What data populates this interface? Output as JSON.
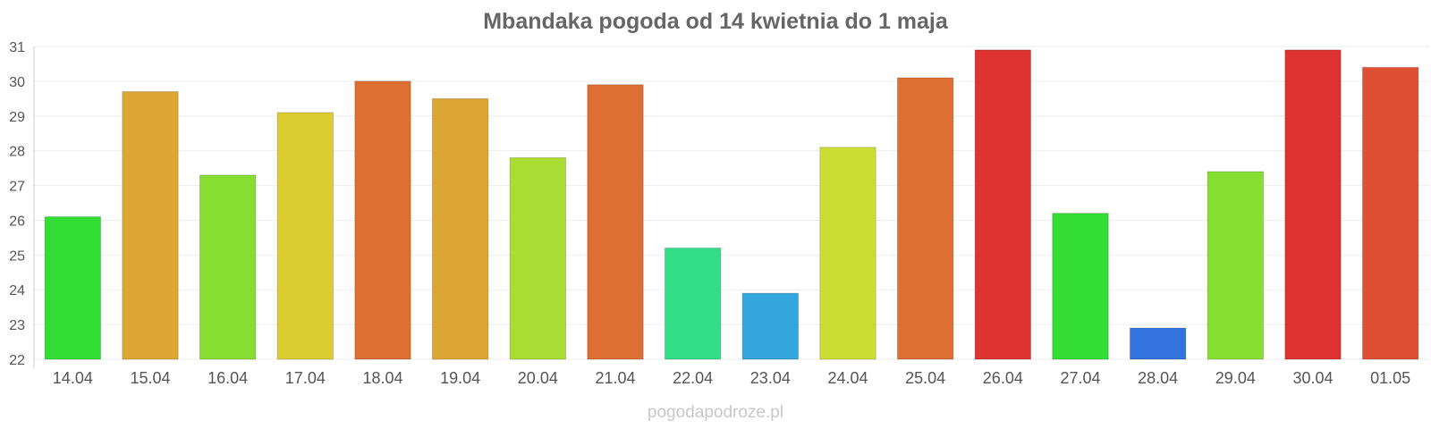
{
  "chart_data": {
    "type": "bar",
    "title": "Mbandaka pogoda od 14 kwietnia do 1 maja",
    "xlabel": "",
    "ylabel": "",
    "ylim": [
      22,
      31
    ],
    "yticks": [
      22,
      23,
      24,
      25,
      26,
      27,
      28,
      29,
      30,
      31
    ],
    "grid": true,
    "legend": "none",
    "categories": [
      "14.04",
      "15.04",
      "16.04",
      "17.04",
      "18.04",
      "19.04",
      "20.04",
      "21.04",
      "22.04",
      "23.04",
      "24.04",
      "25.04",
      "26.04",
      "27.04",
      "28.04",
      "29.04",
      "30.04",
      "01.05"
    ],
    "values": [
      26.1,
      29.7,
      27.3,
      29.1,
      30.0,
      29.5,
      27.8,
      29.9,
      25.2,
      23.9,
      28.1,
      30.1,
      30.9,
      26.2,
      22.9,
      27.4,
      30.9,
      30.4
    ],
    "colors": [
      "#33dd33",
      "#dda633",
      "#88dd33",
      "#dccd33",
      "#dd6f33",
      "#dda633",
      "#aadd33",
      "#dd6f33",
      "#33dd88",
      "#33a6dd",
      "#ccdd33",
      "#dd6f33",
      "#dd3333",
      "#33dd33",
      "#3373dd",
      "#88dd33",
      "#dd3333",
      "#dd5033"
    ]
  },
  "watermark": "pogodapodroze.pl"
}
